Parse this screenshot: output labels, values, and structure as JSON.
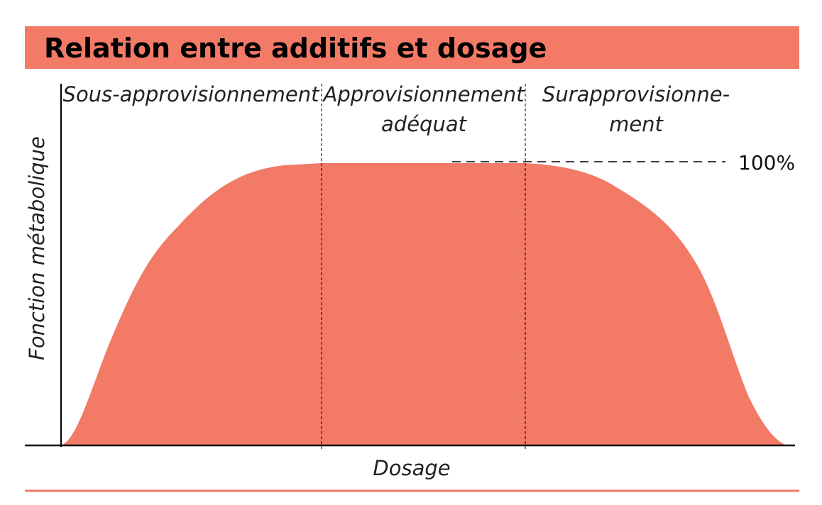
{
  "header": {
    "title": "Relation entre additifs et dosage"
  },
  "zones": [
    {
      "lines": [
        "Sous-approvisionnement"
      ]
    },
    {
      "lines": [
        "Approvisionnement",
        "adéquat"
      ]
    },
    {
      "lines": [
        "Surapprovisionne-",
        "ment"
      ]
    }
  ],
  "axes": {
    "y_label": "Fonction métabolique",
    "x_label": "Dosage"
  },
  "reference": {
    "label": "100%"
  }
}
